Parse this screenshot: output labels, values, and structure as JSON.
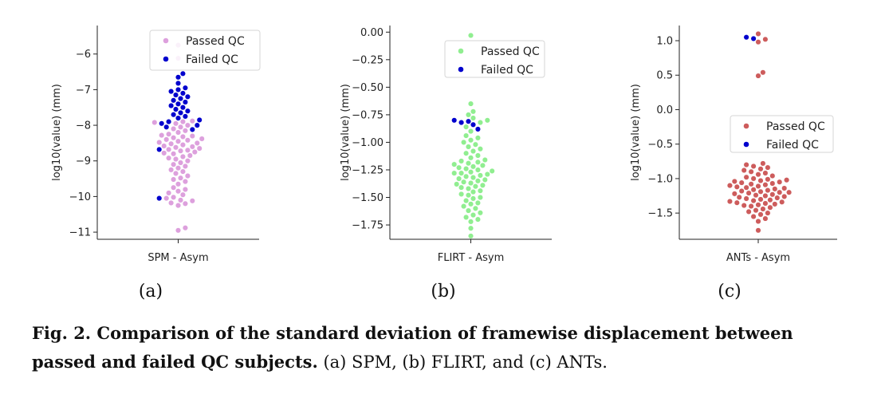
{
  "chart_data": [
    {
      "type": "swarm",
      "subplot_label": "(a)",
      "category": "SPM - Asym",
      "ylabel": "log10(value) (mm)",
      "ylim": [
        -11.2,
        -5.2
      ],
      "yticks": [
        -6,
        -7,
        -8,
        -9,
        -10,
        -11
      ],
      "legend": {
        "placement": "upper-right",
        "entries": [
          "Passed QC",
          "Failed QC"
        ]
      },
      "colors": {
        "passed": "#dda0dd",
        "failed": "#0000cd"
      },
      "series": [
        {
          "name": "Passed QC",
          "values": [
            -10.95,
            -10.88,
            -10.25,
            -10.2,
            -10.18,
            -10.12,
            -10.1,
            -10.05,
            -10.02,
            -9.95,
            -9.9,
            -9.85,
            -9.8,
            -9.75,
            -9.65,
            -9.58,
            -9.52,
            -9.48,
            -9.42,
            -9.35,
            -9.3,
            -9.25,
            -9.2,
            -9.15,
            -9.1,
            -9.05,
            -9.0,
            -8.95,
            -8.92,
            -8.88,
            -8.85,
            -8.8,
            -8.78,
            -8.75,
            -8.72,
            -8.7,
            -8.68,
            -8.65,
            -8.62,
            -8.6,
            -8.58,
            -8.55,
            -8.52,
            -8.5,
            -8.48,
            -8.45,
            -8.42,
            -8.4,
            -8.38,
            -8.35,
            -8.32,
            -8.3,
            -8.28,
            -8.25,
            -8.2,
            -8.15,
            -8.1,
            -8.05,
            -8.0,
            -7.95,
            -7.92,
            -7.9,
            -7.88,
            -6.12,
            -5.75
          ]
        },
        {
          "name": "Failed QC",
          "values": [
            -10.05,
            -8.68,
            -8.12,
            -8.05,
            -8.0,
            -7.95,
            -7.9,
            -7.85,
            -7.8,
            -7.75,
            -7.7,
            -7.65,
            -7.6,
            -7.55,
            -7.5,
            -7.45,
            -7.4,
            -7.35,
            -7.3,
            -7.25,
            -7.2,
            -7.15,
            -7.1,
            -7.05,
            -7.0,
            -6.95,
            -6.82,
            -6.65,
            -6.55
          ]
        }
      ]
    },
    {
      "type": "swarm",
      "subplot_label": "(b)",
      "category": "FLIRT - Asym",
      "ylabel": "log10(value) (mm)",
      "ylim": [
        -1.88,
        0.06
      ],
      "yticks": [
        0.0,
        -0.25,
        -0.5,
        -0.75,
        -1.0,
        -1.25,
        -1.5,
        -1.75
      ],
      "ytick_labels": [
        "0.00",
        "−0.25",
        "−0.50",
        "−0.75",
        "−1.00",
        "−1.25",
        "−1.50",
        "−1.75"
      ],
      "legend": {
        "placement": "upper-right",
        "entries": [
          "Passed QC",
          "Failed QC"
        ]
      },
      "colors": {
        "passed": "#90ee90",
        "failed": "#0000cd"
      },
      "series": [
        {
          "name": "Passed QC",
          "values": [
            -1.85,
            -1.78,
            -1.72,
            -1.7,
            -1.68,
            -1.66,
            -1.64,
            -1.62,
            -1.6,
            -1.58,
            -1.56,
            -1.55,
            -1.53,
            -1.51,
            -1.5,
            -1.48,
            -1.47,
            -1.45,
            -1.44,
            -1.42,
            -1.41,
            -1.4,
            -1.39,
            -1.38,
            -1.37,
            -1.36,
            -1.35,
            -1.34,
            -1.33,
            -1.32,
            -1.31,
            -1.3,
            -1.29,
            -1.28,
            -1.28,
            -1.27,
            -1.26,
            -1.25,
            -1.24,
            -1.23,
            -1.22,
            -1.21,
            -1.2,
            -1.19,
            -1.18,
            -1.17,
            -1.16,
            -1.14,
            -1.12,
            -1.1,
            -1.08,
            -1.06,
            -1.04,
            -1.02,
            -1.0,
            -0.98,
            -0.96,
            -0.94,
            -0.9,
            -0.86,
            -0.82,
            -0.8,
            -0.78,
            -0.75,
            -0.72,
            -0.65,
            -0.03
          ]
        },
        {
          "name": "Failed QC",
          "values": [
            -0.88,
            -0.84,
            -0.82,
            -0.81,
            -0.8
          ]
        }
      ]
    },
    {
      "type": "swarm",
      "subplot_label": "(c)",
      "category": "ANTs - Asym",
      "ylabel": "log10(value) (mm)",
      "ylim": [
        -1.88,
        1.22
      ],
      "yticks": [
        1.0,
        0.5,
        0.0,
        -0.5,
        -1.0,
        -1.5
      ],
      "ytick_labels": [
        "1.0",
        "0.5",
        "0.0",
        "−0.5",
        "−1.0",
        "−1.5"
      ],
      "legend": {
        "placement": "center-right",
        "entries": [
          "Passed QC",
          "Failed QC"
        ]
      },
      "colors": {
        "passed": "#cd5c5c",
        "failed": "#0000cd"
      },
      "series": [
        {
          "name": "Passed QC",
          "values": [
            -1.75,
            -1.62,
            -1.58,
            -1.55,
            -1.52,
            -1.5,
            -1.48,
            -1.46,
            -1.44,
            -1.42,
            -1.4,
            -1.39,
            -1.38,
            -1.37,
            -1.36,
            -1.35,
            -1.34,
            -1.33,
            -1.32,
            -1.31,
            -1.3,
            -1.29,
            -1.28,
            -1.27,
            -1.26,
            -1.25,
            -1.24,
            -1.23,
            -1.22,
            -1.21,
            -1.2,
            -1.2,
            -1.19,
            -1.18,
            -1.17,
            -1.16,
            -1.15,
            -1.14,
            -1.13,
            -1.12,
            -1.11,
            -1.1,
            -1.09,
            -1.08,
            -1.07,
            -1.06,
            -1.05,
            -1.04,
            -1.03,
            -1.02,
            -1.01,
            -1.0,
            -0.98,
            -0.96,
            -0.94,
            -0.92,
            -0.9,
            -0.88,
            -0.86,
            -0.84,
            -0.82,
            -0.8,
            -0.78,
            0.49,
            0.54,
            0.98,
            1.02,
            1.1
          ]
        },
        {
          "name": "Failed QC",
          "values": [
            1.05,
            1.03
          ]
        }
      ]
    }
  ],
  "caption": {
    "bold": "Fig. 2. Comparison of the standard deviation of framewise displacement between passed and failed QC subjects.",
    "normal": " (a) SPM, (b) FLIRT, and (c) ANTs."
  }
}
